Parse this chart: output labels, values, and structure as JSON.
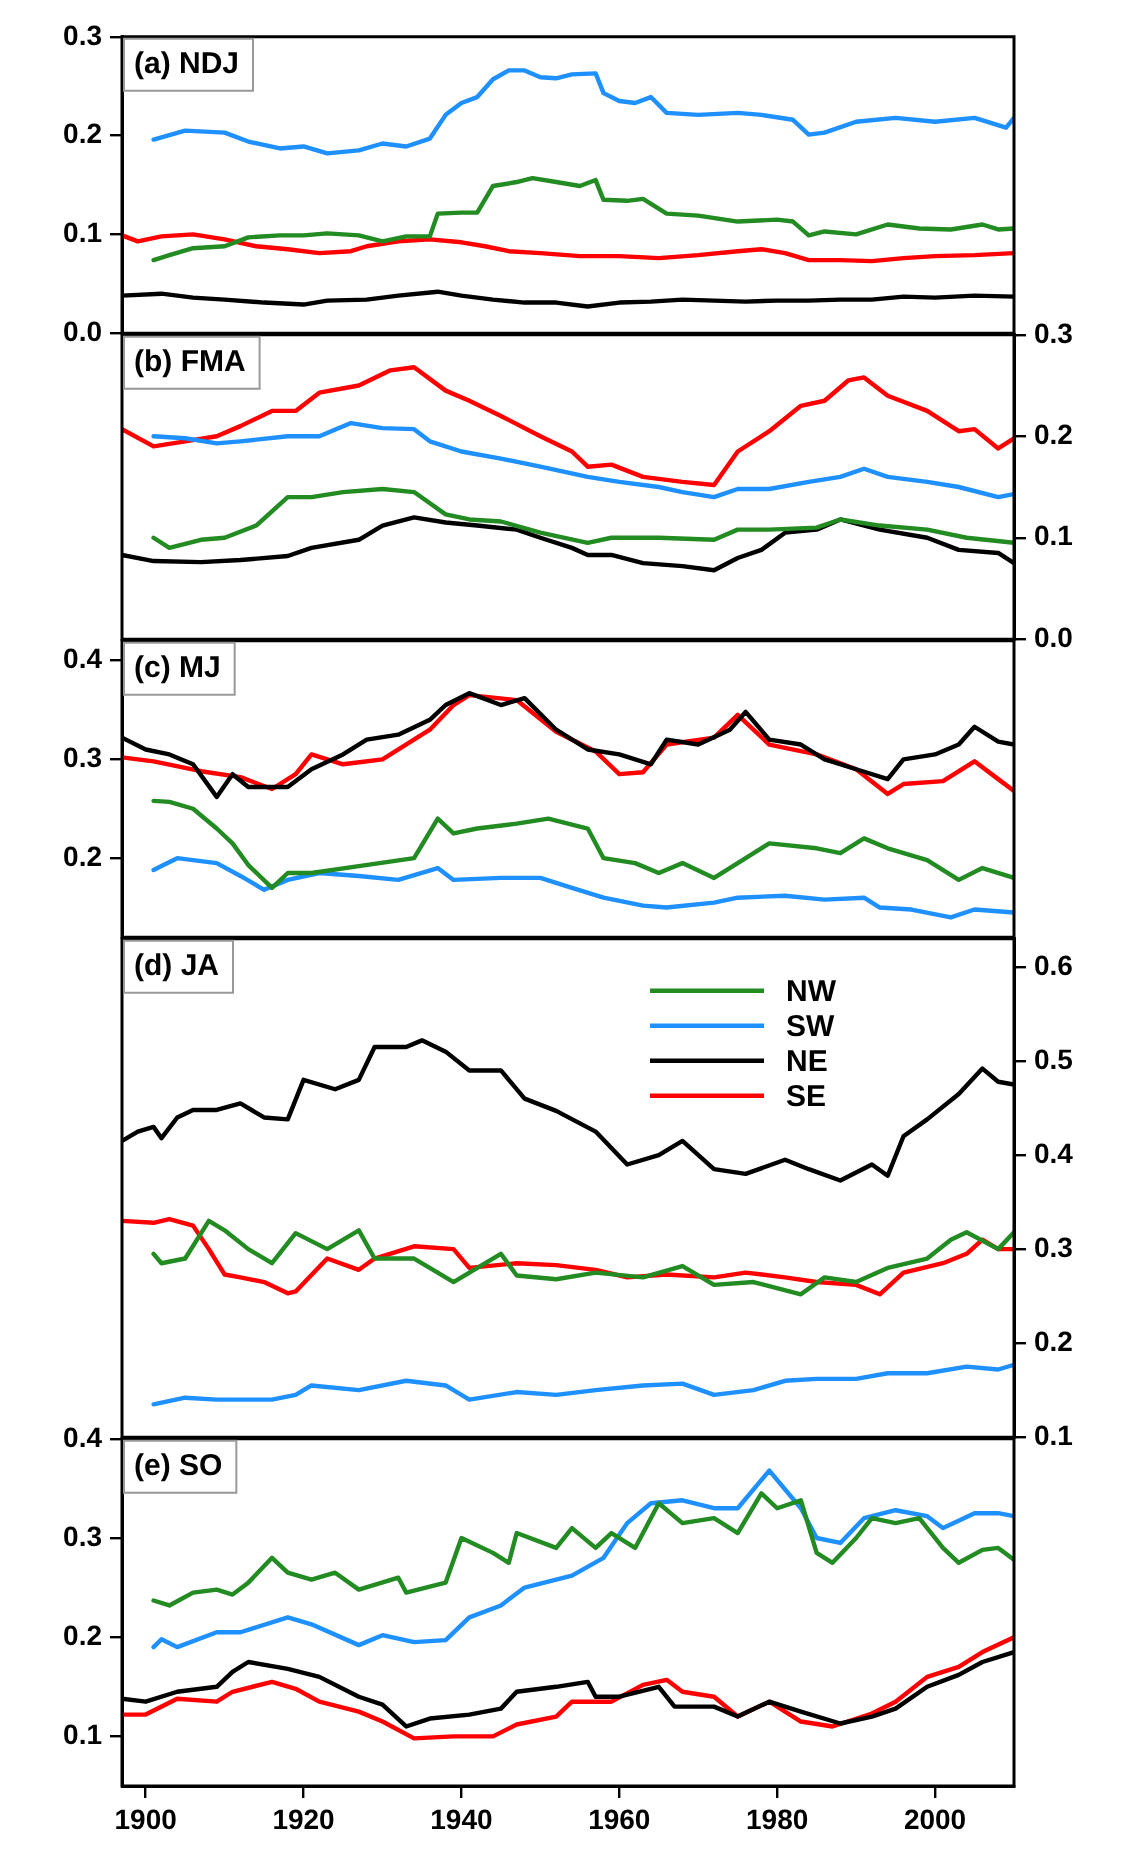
{
  "chart_data": [
    {
      "type": "line",
      "title": "(a) NDJ",
      "xlim": [
        1897,
        2010
      ],
      "xticks": [
        1900,
        1920,
        1940,
        1960,
        1980,
        2000
      ],
      "ylim": [
        0,
        0.3
      ],
      "yticks": [
        {
          "value": 0,
          "label": "0.0"
        },
        0.1,
        0.2,
        0.3
      ],
      "tick_labels": "y",
      "series": [
        {
          "color": "#228b22",
          "x": [
            1901,
            1903,
            1906,
            1910,
            1913,
            1917,
            1920,
            1923,
            1927,
            1930,
            1933,
            1936,
            1937,
            1940,
            1942,
            1944,
            1947,
            1949,
            1952,
            1955,
            1957,
            1958,
            1961,
            1963,
            1966,
            1970,
            1975,
            1980,
            1982,
            1984,
            1986,
            1990,
            1994,
            1998,
            2002,
            2006,
            2008,
            2010
          ],
          "values": [
            0.074,
            0.079,
            0.086,
            0.088,
            0.097,
            0.099,
            0.099,
            0.101,
            0.099,
            0.093,
            0.098,
            0.098,
            0.121,
            0.122,
            0.122,
            0.149,
            0.153,
            0.157,
            0.153,
            0.149,
            0.155,
            0.135,
            0.134,
            0.136,
            0.121,
            0.119,
            0.113,
            0.115,
            0.113,
            0.099,
            0.103,
            0.1,
            0.11,
            0.106,
            0.105,
            0.11,
            0.105,
            0.106
          ]
        },
        {
          "color": "#1e90ff",
          "x": [
            1901,
            1905,
            1910,
            1913,
            1917,
            1920,
            1923,
            1927,
            1930,
            1933,
            1936,
            1938,
            1940,
            1942,
            1944,
            1946,
            1948,
            1950,
            1952,
            1954,
            1957,
            1958,
            1960,
            1962,
            1964,
            1966,
            1970,
            1975,
            1978,
            1982,
            1984,
            1986,
            1990,
            1995,
            2000,
            2005,
            2009,
            2010
          ],
          "values": [
            0.196,
            0.205,
            0.203,
            0.194,
            0.187,
            0.189,
            0.182,
            0.185,
            0.192,
            0.189,
            0.197,
            0.221,
            0.233,
            0.239,
            0.257,
            0.266,
            0.266,
            0.259,
            0.258,
            0.262,
            0.263,
            0.243,
            0.235,
            0.233,
            0.239,
            0.223,
            0.221,
            0.223,
            0.221,
            0.216,
            0.201,
            0.203,
            0.214,
            0.218,
            0.214,
            0.218,
            0.208,
            0.218
          ]
        },
        {
          "color": "#000000",
          "x": [
            1897,
            1902,
            1906,
            1910,
            1915,
            1920,
            1923,
            1928,
            1932,
            1937,
            1940,
            1944,
            1948,
            1952,
            1956,
            1960,
            1964,
            1968,
            1972,
            1976,
            1980,
            1984,
            1988,
            1992,
            1996,
            2000,
            2005,
            2010
          ],
          "values": [
            0.038,
            0.04,
            0.036,
            0.034,
            0.031,
            0.029,
            0.033,
            0.034,
            0.038,
            0.042,
            0.038,
            0.034,
            0.031,
            0.031,
            0.027,
            0.031,
            0.032,
            0.034,
            0.033,
            0.032,
            0.033,
            0.033,
            0.034,
            0.034,
            0.037,
            0.036,
            0.038,
            0.037
          ]
        },
        {
          "color": "#ff0000",
          "x": [
            1897,
            1899,
            1902,
            1906,
            1910,
            1914,
            1918,
            1922,
            1926,
            1928,
            1932,
            1936,
            1940,
            1943,
            1946,
            1950,
            1955,
            1960,
            1965,
            1970,
            1975,
            1978,
            1981,
            1984,
            1988,
            1992,
            1996,
            2000,
            2005,
            2010
          ],
          "values": [
            0.099,
            0.093,
            0.098,
            0.1,
            0.095,
            0.088,
            0.085,
            0.081,
            0.083,
            0.088,
            0.093,
            0.095,
            0.092,
            0.088,
            0.083,
            0.081,
            0.078,
            0.078,
            0.076,
            0.079,
            0.083,
            0.085,
            0.081,
            0.074,
            0.074,
            0.073,
            0.076,
            0.078,
            0.079,
            0.081
          ]
        }
      ]
    },
    {
      "type": "line",
      "title": "(b) FMA",
      "xlim": [
        1897,
        2010
      ],
      "xticks": [
        1900,
        1920,
        1940,
        1960,
        1980,
        2000
      ],
      "y2lim": [
        0,
        0.3
      ],
      "y2ticks": [
        {
          "value": 0,
          "label": "0.0"
        },
        0.1,
        0.2,
        0.3
      ],
      "tick_labels": "y",
      "series": [
        {
          "color": "#228b22",
          "axis": "y2",
          "x": [
            1901,
            1903,
            1907,
            1910,
            1914,
            1918,
            1921,
            1925,
            1930,
            1934,
            1938,
            1941,
            1945,
            1950,
            1956,
            1959,
            1965,
            1972,
            1975,
            1979,
            1985,
            1988,
            1993,
            1999,
            2004,
            2010
          ],
          "values": [
            0.1,
            0.09,
            0.098,
            0.1,
            0.112,
            0.14,
            0.14,
            0.145,
            0.148,
            0.145,
            0.123,
            0.118,
            0.116,
            0.105,
            0.095,
            0.1,
            0.1,
            0.098,
            0.108,
            0.108,
            0.11,
            0.118,
            0.112,
            0.108,
            0.1,
            0.095
          ]
        },
        {
          "color": "#1e90ff",
          "axis": "y2",
          "x": [
            1901,
            1905,
            1909,
            1912,
            1918,
            1922,
            1926,
            1930,
            1934,
            1936,
            1940,
            1945,
            1950,
            1956,
            1960,
            1965,
            1968,
            1972,
            1975,
            1979,
            1984,
            1988,
            1991,
            1994,
            1999,
            2003,
            2008,
            2010
          ],
          "values": [
            0.2,
            0.198,
            0.193,
            0.195,
            0.2,
            0.2,
            0.213,
            0.208,
            0.207,
            0.195,
            0.185,
            0.178,
            0.17,
            0.16,
            0.155,
            0.15,
            0.145,
            0.14,
            0.148,
            0.148,
            0.155,
            0.16,
            0.168,
            0.16,
            0.155,
            0.15,
            0.14,
            0.143
          ]
        },
        {
          "color": "#000000",
          "axis": "y2",
          "x": [
            1897,
            1901,
            1907,
            1912,
            1918,
            1921,
            1927,
            1930,
            1934,
            1938,
            1942,
            1947,
            1950,
            1954,
            1956,
            1959,
            1963,
            1968,
            1972,
            1975,
            1978,
            1981,
            1985,
            1988,
            1993,
            1999,
            2003,
            2008,
            2010
          ],
          "values": [
            0.083,
            0.077,
            0.076,
            0.078,
            0.082,
            0.09,
            0.098,
            0.112,
            0.12,
            0.115,
            0.112,
            0.108,
            0.1,
            0.09,
            0.083,
            0.083,
            0.075,
            0.072,
            0.068,
            0.08,
            0.088,
            0.105,
            0.108,
            0.118,
            0.108,
            0.1,
            0.088,
            0.085,
            0.075
          ]
        },
        {
          "color": "#ff0000",
          "axis": "y2",
          "x": [
            1897,
            1901,
            1905,
            1909,
            1912,
            1916,
            1919,
            1922,
            1927,
            1931,
            1934,
            1938,
            1941,
            1945,
            1950,
            1954,
            1956,
            1959,
            1963,
            1968,
            1972,
            1975,
            1979,
            1983,
            1986,
            1989,
            1991,
            1994,
            1999,
            2003,
            2005,
            2008,
            2010
          ],
          "values": [
            0.207,
            0.19,
            0.195,
            0.2,
            0.21,
            0.225,
            0.225,
            0.243,
            0.25,
            0.265,
            0.268,
            0.245,
            0.235,
            0.22,
            0.2,
            0.185,
            0.17,
            0.172,
            0.16,
            0.155,
            0.152,
            0.185,
            0.205,
            0.23,
            0.235,
            0.255,
            0.258,
            0.24,
            0.225,
            0.205,
            0.207,
            0.188,
            0.198
          ]
        }
      ]
    },
    {
      "type": "line",
      "title": "(c) MJ",
      "xlim": [
        1897,
        2010
      ],
      "xticks": [
        1900,
        1920,
        1940,
        1960,
        1980,
        2000
      ],
      "ylim": [
        0.12,
        0.42
      ],
      "yticks": [
        0.2,
        0.3,
        0.4
      ],
      "tick_labels": "y",
      "series": [
        {
          "color": "#228b22",
          "x": [
            1901,
            1903,
            1906,
            1909,
            1911,
            1913,
            1916,
            1918,
            1921,
            1927,
            1934,
            1937,
            1939,
            1942,
            1947,
            1951,
            1956,
            1958,
            1962,
            1965,
            1968,
            1972,
            1975,
            1979,
            1985,
            1988,
            1991,
            1994,
            1999,
            2003,
            2006,
            2010
          ],
          "values": [
            0.258,
            0.257,
            0.25,
            0.23,
            0.215,
            0.193,
            0.17,
            0.185,
            0.185,
            0.192,
            0.2,
            0.24,
            0.225,
            0.23,
            0.235,
            0.24,
            0.23,
            0.2,
            0.195,
            0.185,
            0.195,
            0.18,
            0.195,
            0.215,
            0.21,
            0.205,
            0.22,
            0.21,
            0.198,
            0.178,
            0.19,
            0.18
          ]
        },
        {
          "color": "#1e90ff",
          "x": [
            1901,
            1902,
            1904,
            1909,
            1912,
            1915,
            1918,
            1922,
            1927,
            1932,
            1937,
            1939,
            1945,
            1950,
            1954,
            1958,
            1963,
            1966,
            1972,
            1975,
            1981,
            1986,
            1991,
            1993,
            1997,
            2002,
            2005,
            2010
          ],
          "values": [
            0.188,
            0.192,
            0.2,
            0.195,
            0.182,
            0.168,
            0.178,
            0.185,
            0.182,
            0.178,
            0.19,
            0.178,
            0.18,
            0.18,
            0.17,
            0.16,
            0.152,
            0.15,
            0.155,
            0.16,
            0.162,
            0.158,
            0.16,
            0.15,
            0.148,
            0.14,
            0.148,
            0.145
          ]
        },
        {
          "color": "#000000",
          "x": [
            1897,
            1900,
            1903,
            1906,
            1909,
            1911,
            1913,
            1918,
            1921,
            1925,
            1928,
            1932,
            1936,
            1938,
            1941,
            1945,
            1948,
            1952,
            1956,
            1960,
            1964,
            1966,
            1970,
            1974,
            1976,
            1979,
            1983,
            1986,
            1990,
            1994,
            1996,
            2000,
            2003,
            2005,
            2008,
            2010
          ],
          "values": [
            0.322,
            0.31,
            0.305,
            0.295,
            0.262,
            0.285,
            0.272,
            0.272,
            0.29,
            0.305,
            0.32,
            0.325,
            0.34,
            0.355,
            0.367,
            0.355,
            0.362,
            0.33,
            0.31,
            0.305,
            0.295,
            0.32,
            0.315,
            0.33,
            0.348,
            0.32,
            0.315,
            0.3,
            0.29,
            0.28,
            0.3,
            0.305,
            0.315,
            0.333,
            0.318,
            0.315
          ]
        },
        {
          "color": "#ff0000",
          "x": [
            1897,
            1901,
            1907,
            1912,
            1916,
            1919,
            1921,
            1925,
            1930,
            1936,
            1939,
            1941,
            1947,
            1952,
            1957,
            1960,
            1963,
            1966,
            1972,
            1975,
            1979,
            1985,
            1990,
            1994,
            1996,
            2001,
            2005,
            2008,
            2010
          ],
          "values": [
            0.302,
            0.298,
            0.288,
            0.282,
            0.27,
            0.285,
            0.305,
            0.295,
            0.3,
            0.33,
            0.355,
            0.365,
            0.36,
            0.328,
            0.308,
            0.285,
            0.287,
            0.315,
            0.322,
            0.345,
            0.315,
            0.305,
            0.29,
            0.265,
            0.275,
            0.278,
            0.298,
            0.28,
            0.268
          ]
        }
      ]
    },
    {
      "type": "line",
      "title": "(d) JA",
      "xlim": [
        1897,
        2010
      ],
      "xticks": [
        1900,
        1920,
        1940,
        1960,
        1980,
        2000
      ],
      "y2lim": [
        0.1,
        0.63
      ],
      "y2ticks": [
        0.1,
        0.2,
        0.3,
        0.4,
        0.5,
        0.6
      ],
      "tick_labels": "y",
      "legend": "top right",
      "series": [
        {
          "name": "NW",
          "color": "#228b22",
          "axis": "y2",
          "x": [
            1901,
            1902,
            1905,
            1908,
            1910,
            1913,
            1916,
            1919,
            1923,
            1927,
            1929,
            1934,
            1939,
            1945,
            1947,
            1952,
            1957,
            1963,
            1968,
            1972,
            1977,
            1983,
            1986,
            1990,
            1994,
            1999,
            2002,
            2004,
            2008,
            2010
          ],
          "values": [
            0.295,
            0.285,
            0.29,
            0.33,
            0.32,
            0.3,
            0.285,
            0.317,
            0.3,
            0.32,
            0.29,
            0.29,
            0.265,
            0.295,
            0.272,
            0.268,
            0.275,
            0.27,
            0.282,
            0.262,
            0.265,
            0.252,
            0.27,
            0.265,
            0.28,
            0.29,
            0.31,
            0.318,
            0.3,
            0.318
          ]
        },
        {
          "name": "SW",
          "color": "#1e90ff",
          "axis": "y2",
          "x": [
            1901,
            1905,
            1909,
            1916,
            1919,
            1921,
            1927,
            1933,
            1938,
            1941,
            1947,
            1952,
            1957,
            1963,
            1968,
            1972,
            1977,
            1981,
            1985,
            1990,
            1994,
            1999,
            2004,
            2008,
            2010
          ],
          "values": [
            0.135,
            0.142,
            0.14,
            0.14,
            0.145,
            0.155,
            0.15,
            0.16,
            0.155,
            0.14,
            0.148,
            0.145,
            0.15,
            0.155,
            0.157,
            0.145,
            0.15,
            0.16,
            0.162,
            0.162,
            0.168,
            0.168,
            0.175,
            0.172,
            0.177
          ]
        },
        {
          "name": "NE",
          "color": "#000000",
          "axis": "y2",
          "x": [
            1897,
            1899,
            1901,
            1902,
            1904,
            1906,
            1909,
            1912,
            1915,
            1918,
            1920,
            1924,
            1927,
            1929,
            1933,
            1935,
            1938,
            1941,
            1945,
            1948,
            1952,
            1957,
            1961,
            1965,
            1968,
            1972,
            1976,
            1981,
            1984,
            1988,
            1992,
            1994,
            1996,
            1999,
            2003,
            2006,
            2008,
            2010
          ],
          "values": [
            0.415,
            0.425,
            0.43,
            0.418,
            0.44,
            0.448,
            0.448,
            0.455,
            0.44,
            0.438,
            0.48,
            0.47,
            0.48,
            0.515,
            0.515,
            0.522,
            0.51,
            0.49,
            0.49,
            0.46,
            0.447,
            0.425,
            0.39,
            0.4,
            0.415,
            0.385,
            0.38,
            0.395,
            0.385,
            0.373,
            0.39,
            0.378,
            0.42,
            0.438,
            0.465,
            0.492,
            0.478,
            0.475
          ]
        },
        {
          "name": "SE",
          "color": "#ff0000",
          "axis": "y2",
          "x": [
            1897,
            1901,
            1903,
            1906,
            1908,
            1910,
            1912,
            1915,
            1918,
            1919,
            1923,
            1927,
            1929,
            1934,
            1939,
            1941,
            1947,
            1952,
            1957,
            1961,
            1966,
            1972,
            1976,
            1981,
            1985,
            1990,
            1993,
            1996,
            2001,
            2004,
            2006,
            2008,
            2010
          ],
          "values": [
            0.33,
            0.328,
            0.332,
            0.325,
            0.3,
            0.273,
            0.27,
            0.265,
            0.253,
            0.255,
            0.29,
            0.278,
            0.29,
            0.303,
            0.3,
            0.28,
            0.285,
            0.283,
            0.278,
            0.27,
            0.273,
            0.27,
            0.275,
            0.27,
            0.265,
            0.262,
            0.252,
            0.275,
            0.285,
            0.295,
            0.31,
            0.3,
            0.3
          ]
        }
      ]
    },
    {
      "type": "line",
      "title": "(e) SO",
      "xlim": [
        1897,
        2010
      ],
      "xticks": [
        1900,
        1920,
        1940,
        1960,
        1980,
        2000
      ],
      "ylim": [
        0.05,
        0.4
      ],
      "yticks": [
        0.1,
        0.2,
        0.3,
        0.4
      ],
      "series": [
        {
          "color": "#228b22",
          "x": [
            1901,
            1903,
            1906,
            1909,
            1911,
            1913,
            1916,
            1918,
            1921,
            1924,
            1927,
            1932,
            1933,
            1938,
            1940,
            1944,
            1946,
            1947,
            1952,
            1954,
            1957,
            1959,
            1962,
            1965,
            1968,
            1972,
            1975,
            1978,
            1980,
            1983,
            1985,
            1987,
            1990,
            1992,
            1995,
            1998,
            2001,
            2003,
            2006,
            2008,
            2010
          ],
          "values": [
            0.237,
            0.232,
            0.245,
            0.248,
            0.243,
            0.255,
            0.28,
            0.265,
            0.258,
            0.265,
            0.248,
            0.26,
            0.245,
            0.255,
            0.3,
            0.285,
            0.275,
            0.305,
            0.29,
            0.31,
            0.29,
            0.305,
            0.29,
            0.335,
            0.315,
            0.32,
            0.305,
            0.345,
            0.33,
            0.338,
            0.285,
            0.275,
            0.3,
            0.32,
            0.315,
            0.32,
            0.29,
            0.275,
            0.288,
            0.29,
            0.278
          ]
        },
        {
          "color": "#1e90ff",
          "x": [
            1901,
            1902,
            1904,
            1909,
            1912,
            1918,
            1921,
            1927,
            1930,
            1934,
            1938,
            1941,
            1945,
            1948,
            1954,
            1958,
            1961,
            1964,
            1968,
            1972,
            1975,
            1979,
            1983,
            1985,
            1988,
            1991,
            1995,
            1999,
            2001,
            2005,
            2008,
            2010
          ],
          "values": [
            0.19,
            0.198,
            0.19,
            0.205,
            0.205,
            0.22,
            0.213,
            0.192,
            0.202,
            0.195,
            0.197,
            0.22,
            0.232,
            0.25,
            0.262,
            0.28,
            0.315,
            0.335,
            0.338,
            0.33,
            0.33,
            0.368,
            0.33,
            0.3,
            0.295,
            0.32,
            0.328,
            0.322,
            0.31,
            0.325,
            0.325,
            0.322
          ]
        },
        {
          "color": "#000000",
          "x": [
            1897,
            1900,
            1904,
            1909,
            1911,
            1913,
            1918,
            1922,
            1927,
            1930,
            1933,
            1936,
            1941,
            1945,
            1947,
            1952,
            1956,
            1957,
            1960,
            1965,
            1967,
            1972,
            1975,
            1979,
            1983,
            1988,
            1992,
            1995,
            1999,
            2003,
            2006,
            2010
          ],
          "values": [
            0.138,
            0.135,
            0.145,
            0.15,
            0.165,
            0.175,
            0.168,
            0.16,
            0.14,
            0.132,
            0.11,
            0.118,
            0.122,
            0.128,
            0.145,
            0.15,
            0.155,
            0.14,
            0.14,
            0.15,
            0.13,
            0.13,
            0.12,
            0.135,
            0.125,
            0.113,
            0.12,
            0.128,
            0.15,
            0.162,
            0.175,
            0.185
          ]
        },
        {
          "color": "#ff0000",
          "x": [
            1897,
            1900,
            1904,
            1909,
            1911,
            1916,
            1919,
            1922,
            1927,
            1930,
            1934,
            1939,
            1944,
            1947,
            1952,
            1954,
            1959,
            1963,
            1966,
            1968,
            1972,
            1975,
            1979,
            1983,
            1987,
            1992,
            1995,
            1999,
            2003,
            2006,
            2010
          ],
          "values": [
            0.122,
            0.122,
            0.138,
            0.135,
            0.145,
            0.155,
            0.148,
            0.135,
            0.125,
            0.115,
            0.098,
            0.1,
            0.1,
            0.112,
            0.12,
            0.135,
            0.135,
            0.152,
            0.157,
            0.145,
            0.14,
            0.12,
            0.135,
            0.115,
            0.11,
            0.123,
            0.135,
            0.16,
            0.17,
            0.185,
            0.2
          ]
        }
      ]
    }
  ]
}
